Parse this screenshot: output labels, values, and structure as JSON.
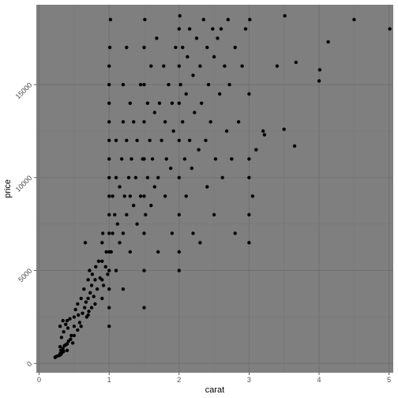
{
  "chart_data": {
    "type": "scatter",
    "title": "",
    "xlabel": "carat",
    "ylabel": "price",
    "xlim": [
      -0.04,
      5.06
    ],
    "ylim": [
      -500,
      19300
    ],
    "x_ticks": [
      {
        "value": 0,
        "label": "0"
      },
      {
        "value": 1,
        "label": "1"
      },
      {
        "value": 2,
        "label": "2"
      },
      {
        "value": 3,
        "label": "3"
      },
      {
        "value": 4,
        "label": "4"
      },
      {
        "value": 5,
        "label": "5"
      }
    ],
    "y_ticks": [
      {
        "value": 0,
        "label": "0"
      },
      {
        "value": 5000,
        "label": "5000"
      },
      {
        "value": 10000,
        "label": "10000"
      },
      {
        "value": 15000,
        "label": "15000"
      }
    ],
    "grid": true,
    "colors": {
      "panel_background": "#7f7f7f",
      "grid_major": "#707070",
      "grid_minor": "#777777",
      "points": "#000000"
    },
    "points": [
      [
        0.23,
        326
      ],
      [
        0.23,
        340
      ],
      [
        0.25,
        380
      ],
      [
        0.28,
        420
      ],
      [
        0.3,
        460
      ],
      [
        0.3,
        520
      ],
      [
        0.31,
        480
      ],
      [
        0.32,
        560
      ],
      [
        0.33,
        600
      ],
      [
        0.35,
        650
      ],
      [
        0.3,
        900
      ],
      [
        0.31,
        700
      ],
      [
        0.34,
        800
      ],
      [
        0.36,
        950
      ],
      [
        0.38,
        1000
      ],
      [
        0.4,
        1050
      ],
      [
        0.4,
        700
      ],
      [
        0.42,
        1200
      ],
      [
        0.45,
        1300
      ],
      [
        0.32,
        1400
      ],
      [
        0.35,
        1700
      ],
      [
        0.34,
        2300
      ],
      [
        0.4,
        2300
      ],
      [
        0.3,
        2000
      ],
      [
        0.38,
        2100
      ],
      [
        0.41,
        1900
      ],
      [
        0.44,
        2400
      ],
      [
        0.46,
        1500
      ],
      [
        0.48,
        1100
      ],
      [
        0.5,
        1500
      ],
      [
        0.5,
        2000
      ],
      [
        0.5,
        2500
      ],
      [
        0.52,
        2900
      ],
      [
        0.55,
        1800
      ],
      [
        0.55,
        3200
      ],
      [
        0.56,
        2600
      ],
      [
        0.58,
        2200
      ],
      [
        0.6,
        2000
      ],
      [
        0.6,
        3500
      ],
      [
        0.62,
        2700
      ],
      [
        0.64,
        4000
      ],
      [
        0.65,
        3000
      ],
      [
        0.66,
        6500
      ],
      [
        0.67,
        3300
      ],
      [
        0.68,
        2500
      ],
      [
        0.7,
        2600
      ],
      [
        0.7,
        3500
      ],
      [
        0.7,
        4500
      ],
      [
        0.71,
        2800
      ],
      [
        0.72,
        5000
      ],
      [
        0.73,
        3800
      ],
      [
        0.75,
        4200
      ],
      [
        0.75,
        3000
      ],
      [
        0.76,
        4800
      ],
      [
        0.78,
        3600
      ],
      [
        0.8,
        3200
      ],
      [
        0.8,
        4500
      ],
      [
        0.81,
        5200
      ],
      [
        0.83,
        4000
      ],
      [
        0.85,
        5500
      ],
      [
        0.87,
        4600
      ],
      [
        0.9,
        3500
      ],
      [
        0.9,
        4500
      ],
      [
        0.9,
        5500
      ],
      [
        0.9,
        6500
      ],
      [
        0.91,
        7000
      ],
      [
        0.92,
        4200
      ],
      [
        0.95,
        5200
      ],
      [
        0.96,
        6000
      ],
      [
        0.98,
        4800
      ],
      [
        1.0,
        2000
      ],
      [
        1.0,
        3000
      ],
      [
        1.0,
        4000
      ],
      [
        1.0,
        5000
      ],
      [
        1.0,
        6000
      ],
      [
        1.0,
        7000
      ],
      [
        1.0,
        8000
      ],
      [
        1.0,
        9000
      ],
      [
        1.0,
        10000
      ],
      [
        1.0,
        11000
      ],
      [
        1.0,
        12000
      ],
      [
        1.0,
        13000
      ],
      [
        1.0,
        14000
      ],
      [
        1.0,
        15000
      ],
      [
        1.0,
        16000
      ],
      [
        1.01,
        17000
      ],
      [
        1.02,
        18500
      ],
      [
        1.03,
        6000
      ],
      [
        1.05,
        7000
      ],
      [
        1.05,
        9000
      ],
      [
        1.08,
        8000
      ],
      [
        1.1,
        5000
      ],
      [
        1.1,
        10000
      ],
      [
        1.1,
        12000
      ],
      [
        1.12,
        7500
      ],
      [
        1.15,
        6500
      ],
      [
        1.15,
        9500
      ],
      [
        1.18,
        11000
      ],
      [
        1.2,
        4000
      ],
      [
        1.2,
        7000
      ],
      [
        1.2,
        13000
      ],
      [
        1.2,
        15000
      ],
      [
        1.22,
        9000
      ],
      [
        1.25,
        8000
      ],
      [
        1.25,
        12000
      ],
      [
        1.25,
        17000
      ],
      [
        1.28,
        10000
      ],
      [
        1.3,
        6000
      ],
      [
        1.3,
        9000
      ],
      [
        1.3,
        14000
      ],
      [
        1.32,
        11000
      ],
      [
        1.35,
        8500
      ],
      [
        1.35,
        13000
      ],
      [
        1.38,
        10000
      ],
      [
        1.4,
        7500
      ],
      [
        1.4,
        12000
      ],
      [
        1.45,
        9000
      ],
      [
        1.45,
        15000
      ],
      [
        1.48,
        11000
      ],
      [
        1.5,
        3000
      ],
      [
        1.5,
        5000
      ],
      [
        1.5,
        7000
      ],
      [
        1.5,
        9000
      ],
      [
        1.5,
        11000
      ],
      [
        1.5,
        13000
      ],
      [
        1.5,
        15000
      ],
      [
        1.5,
        17000
      ],
      [
        1.51,
        18500
      ],
      [
        1.52,
        8000
      ],
      [
        1.55,
        10000
      ],
      [
        1.55,
        14000
      ],
      [
        1.58,
        12000
      ],
      [
        1.6,
        8500
      ],
      [
        1.6,
        16000
      ],
      [
        1.62,
        11000
      ],
      [
        1.65,
        9500
      ],
      [
        1.65,
        13500
      ],
      [
        1.68,
        17500
      ],
      [
        1.7,
        10000
      ],
      [
        1.7,
        6000
      ],
      [
        1.72,
        14000
      ],
      [
        1.75,
        12000
      ],
      [
        1.78,
        16000
      ],
      [
        1.8,
        9000
      ],
      [
        1.8,
        13000
      ],
      [
        1.82,
        11000
      ],
      [
        1.85,
        15000
      ],
      [
        1.88,
        10500
      ],
      [
        1.9,
        7000
      ],
      [
        1.9,
        14000
      ],
      [
        1.92,
        12500
      ],
      [
        1.95,
        17000
      ],
      [
        2.0,
        5000
      ],
      [
        2.0,
        6000
      ],
      [
        2.0,
        8000
      ],
      [
        2.0,
        10000
      ],
      [
        2.0,
        12000
      ],
      [
        2.0,
        14000
      ],
      [
        2.0,
        16000
      ],
      [
        2.0,
        18000
      ],
      [
        2.01,
        18700
      ],
      [
        2.02,
        15000
      ],
      [
        2.05,
        13000
      ],
      [
        2.05,
        17000
      ],
      [
        2.08,
        11000
      ],
      [
        2.1,
        14500
      ],
      [
        2.1,
        9000
      ],
      [
        2.12,
        16500
      ],
      [
        2.15,
        12000
      ],
      [
        2.15,
        18000
      ],
      [
        2.18,
        10500
      ],
      [
        2.2,
        15500
      ],
      [
        2.2,
        7000
      ],
      [
        2.22,
        13500
      ],
      [
        2.25,
        17500
      ],
      [
        2.28,
        11500
      ],
      [
        2.3,
        16000
      ],
      [
        2.3,
        6500
      ],
      [
        2.32,
        14000
      ],
      [
        2.35,
        18500
      ],
      [
        2.38,
        12000
      ],
      [
        2.4,
        17000
      ],
      [
        2.4,
        9500
      ],
      [
        2.42,
        15000
      ],
      [
        2.45,
        13000
      ],
      [
        2.48,
        18000
      ],
      [
        2.5,
        16500
      ],
      [
        2.5,
        8000
      ],
      [
        2.52,
        11000
      ],
      [
        2.55,
        17500
      ],
      [
        2.58,
        14500
      ],
      [
        2.6,
        18000
      ],
      [
        2.62,
        10000
      ],
      [
        2.65,
        16000
      ],
      [
        2.68,
        12500
      ],
      [
        2.7,
        18500
      ],
      [
        2.72,
        15000
      ],
      [
        2.75,
        11000
      ],
      [
        2.8,
        17000
      ],
      [
        2.8,
        7000
      ],
      [
        2.85,
        13000
      ],
      [
        2.9,
        16000
      ],
      [
        2.95,
        18000
      ],
      [
        3.0,
        6500
      ],
      [
        3.0,
        8000
      ],
      [
        3.0,
        10000
      ],
      [
        3.0,
        11000
      ],
      [
        3.0,
        14500
      ],
      [
        3.01,
        18500
      ],
      [
        3.05,
        9000
      ],
      [
        3.1,
        11500
      ],
      [
        3.2,
        12500
      ],
      [
        3.22,
        12300
      ],
      [
        3.4,
        16000
      ],
      [
        3.5,
        12600
      ],
      [
        3.51,
        18700
      ],
      [
        3.65,
        11700
      ],
      [
        3.67,
        16200
      ],
      [
        4.0,
        15200
      ],
      [
        4.01,
        15800
      ],
      [
        4.13,
        17300
      ],
      [
        4.5,
        18500
      ],
      [
        5.01,
        18000
      ]
    ]
  }
}
